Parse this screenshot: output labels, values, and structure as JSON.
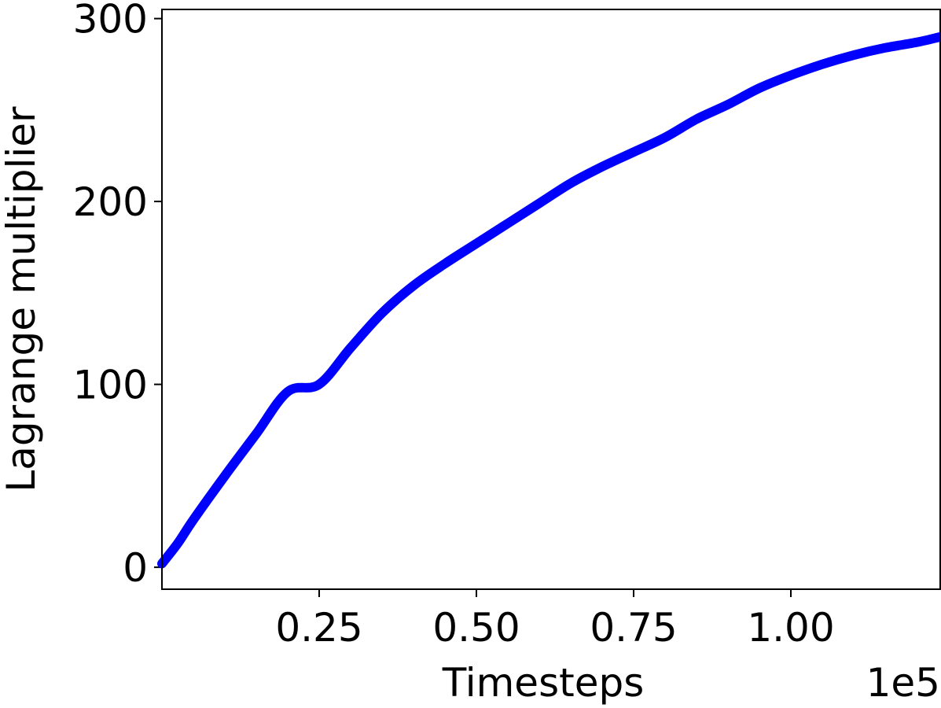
{
  "chart_data": {
    "type": "line",
    "xlabel": "Timesteps",
    "ylabel": "Lagrange multiplier",
    "x_offset_label": "1e5",
    "xlim": [
      0.0,
      1.2375
    ],
    "ylim": [
      -12,
      305
    ],
    "x_ticks": [
      0.25,
      0.5,
      0.75,
      1.0
    ],
    "x_tick_labels": [
      "0.25",
      "0.50",
      "0.75",
      "1.00"
    ],
    "y_ticks": [
      0,
      100,
      200,
      300
    ],
    "y_tick_labels": [
      "0",
      "100",
      "200",
      "300"
    ],
    "grid": false,
    "series": [
      {
        "color": "#0000ff",
        "x": [
          0.0,
          0.025,
          0.05,
          0.1,
          0.15,
          0.2,
          0.25,
          0.3,
          0.35,
          0.4,
          0.45,
          0.5,
          0.55,
          0.6,
          0.65,
          0.7,
          0.75,
          0.8,
          0.85,
          0.9,
          0.95,
          1.0,
          1.05,
          1.1,
          1.15,
          1.2,
          1.2375
        ],
        "y": [
          2,
          13,
          26,
          50,
          73,
          96,
          100,
          120,
          139,
          154,
          166,
          177,
          188,
          199,
          210,
          219,
          227,
          235,
          245,
          253,
          262,
          269,
          275,
          280,
          284,
          287,
          290
        ]
      }
    ]
  }
}
